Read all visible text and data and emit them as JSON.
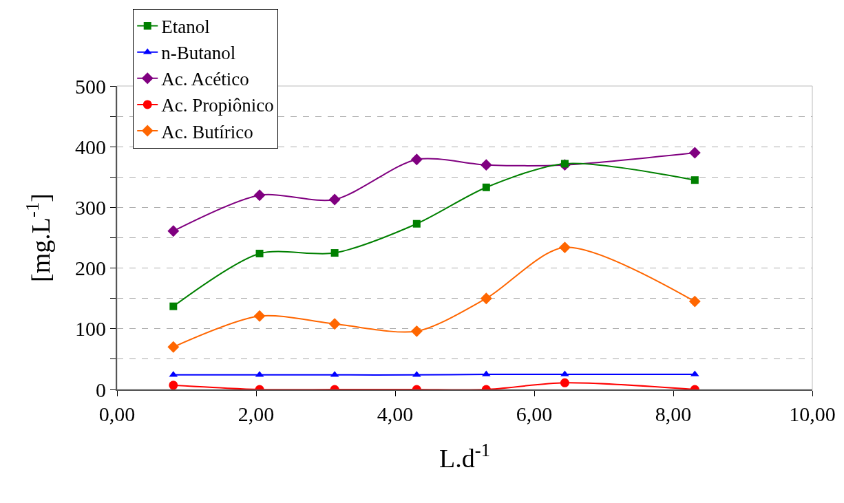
{
  "chart_data": {
    "type": "line",
    "xlabel": "L.d$^{-1}$",
    "ylabel": "[mg.L$^{-1}$]",
    "x": [
      0.81,
      2.05,
      3.13,
      4.31,
      5.31,
      6.44,
      8.31
    ],
    "series": [
      {
        "name": "Etanol",
        "color": "#008000",
        "marker": "square",
        "values": [
          137,
          224,
          225,
          273,
          333,
          372,
          345
        ]
      },
      {
        "name": "n-Butanol",
        "color": "#0000ff",
        "marker": "triangle",
        "values": [
          24,
          24,
          24,
          24,
          25,
          25,
          25
        ]
      },
      {
        "name": "Ac. Acético",
        "color": "#800080",
        "marker": "diamond",
        "values": [
          261,
          320,
          313,
          379,
          370,
          370,
          390
        ]
      },
      {
        "name": "Ac. Propiônico",
        "color": "#ff0000",
        "marker": "circle",
        "values": [
          7,
          0,
          0,
          0,
          0,
          11,
          0
        ]
      },
      {
        "name": "Ac. Butírico",
        "color": "#ff6600",
        "marker": "diamond",
        "values": [
          70,
          121,
          108,
          96,
          150,
          234,
          145
        ]
      }
    ],
    "xlim": [
      0,
      10
    ],
    "xticks": [
      {
        "value": 0,
        "label": "0,00"
      },
      {
        "value": 2,
        "label": "2,00"
      },
      {
        "value": 4,
        "label": "4,00"
      },
      {
        "value": 6,
        "label": "6,00"
      },
      {
        "value": 8,
        "label": "8,00"
      },
      {
        "value": 10,
        "label": "10,00"
      }
    ],
    "ylim": [
      0,
      500
    ],
    "yticks": [
      0,
      {
        "value": 50,
        "label": null
      },
      100,
      {
        "value": 150,
        "label": null
      },
      200,
      {
        "value": 250,
        "label": null
      },
      300,
      {
        "value": 350,
        "label": null
      },
      400,
      {
        "value": 450,
        "label": null
      },
      500
    ],
    "grid": "y",
    "legend": "top left"
  }
}
